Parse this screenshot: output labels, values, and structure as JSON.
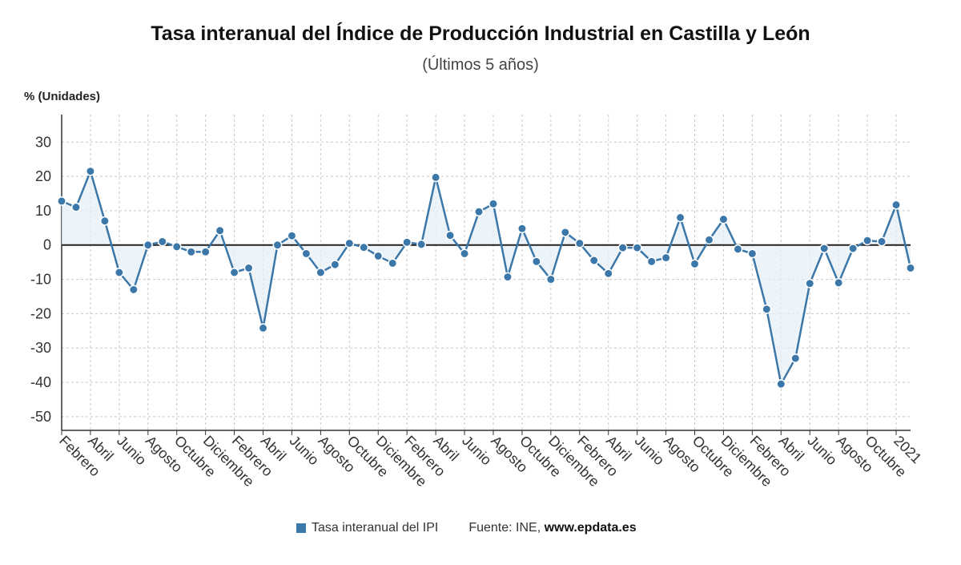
{
  "chart_data": {
    "type": "line",
    "title": "Tasa interanual del Índice de Producción Industrial en Castilla y León",
    "subtitle": "(Últimos 5 años)",
    "ylabel": "% (Unidades)",
    "ylim": [
      -54,
      38
    ],
    "yticks": [
      30,
      20,
      10,
      0,
      -10,
      -20,
      -30,
      -40,
      -50
    ],
    "x_tick_labels": [
      "Febrero",
      "Abril",
      "Junio",
      "Agosto",
      "Octubre",
      "Diciembre",
      "Febrero",
      "Abril",
      "Junio",
      "Agosto",
      "Octubre",
      "Diciembre",
      "Febrero",
      "Abril",
      "Junio",
      "Agosto",
      "Octubre",
      "Diciembre",
      "Febrero",
      "Abril",
      "Junio",
      "Agosto",
      "Octubre",
      "Diciembre",
      "Febrero",
      "Abril",
      "Junio",
      "Agosto",
      "Octubre",
      "2021"
    ],
    "grid": true,
    "legend_position": "bottom",
    "series": [
      {
        "name": "Tasa interanual del IPI",
        "color": "#3b77a8",
        "values": [
          12.8,
          11,
          21.5,
          7,
          -8,
          -13,
          0,
          1,
          -0.5,
          -2,
          -2,
          4.2,
          -8,
          -6.7,
          -24.2,
          0,
          2.7,
          -2.5,
          -8,
          -5.7,
          0.5,
          -0.7,
          -3.2,
          -5.3,
          0.8,
          0.2,
          19.7,
          2.8,
          -2.5,
          9.7,
          12,
          -9.3,
          4.8,
          -4.8,
          -10,
          3.7,
          0.5,
          -4.5,
          -8.3,
          -0.8,
          -0.8,
          -4.8,
          -3.7,
          8,
          -5.5,
          1.5,
          7.5,
          -1.2,
          -2.5,
          -18.7,
          -40.5,
          -33,
          -11.2,
          -1,
          -11,
          -1,
          1.3,
          1,
          11.7,
          -6.7
        ]
      }
    ]
  },
  "legend": {
    "label": "Tasa interanual del IPI"
  },
  "source": {
    "prefix": "Fuente: INE, ",
    "site": "www.epdata.es"
  }
}
